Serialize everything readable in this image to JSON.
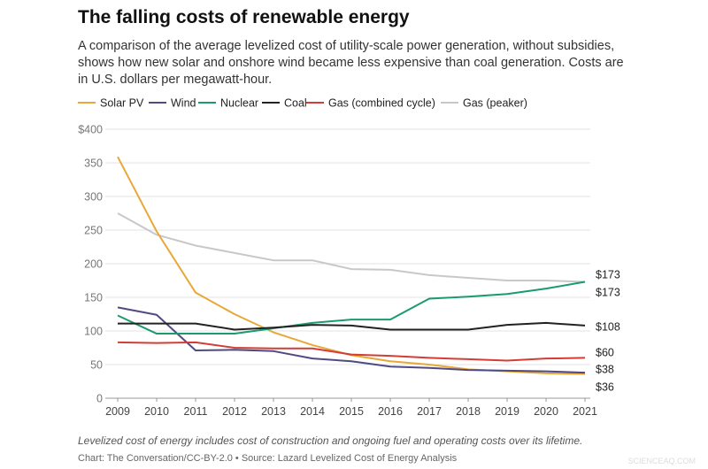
{
  "chart_data": {
    "type": "line",
    "title": "The falling costs of renewable energy",
    "subtitle": [
      "A comparison of the average levelized cost of utility-scale power generation, without subsidies,",
      "shows how new solar and onshore wind became less expensive than coal generation. Costs are",
      "in U.S. dollars per megawatt-hour."
    ],
    "categories": [
      "2009",
      "2010",
      "2011",
      "2012",
      "2013",
      "2014",
      "2015",
      "2016",
      "2017",
      "2018",
      "2019",
      "2020",
      "2021"
    ],
    "series": [
      {
        "name": "Solar PV",
        "color": "#e8a838",
        "values": [
          359,
          248,
          157,
          125,
          98,
          79,
          64,
          55,
          50,
          43,
          40,
          37,
          36
        ],
        "value_labels": [
          null,
          null,
          null,
          null,
          null,
          null,
          null,
          null,
          null,
          null,
          null,
          null,
          "$36"
        ]
      },
      {
        "name": "Wind",
        "color": "#4e4a82",
        "values": [
          135,
          124,
          71,
          72,
          70,
          59,
          55,
          47,
          45,
          42,
          41,
          40,
          38
        ],
        "value_labels": [
          null,
          null,
          null,
          null,
          null,
          null,
          null,
          null,
          null,
          null,
          null,
          null,
          "$38"
        ]
      },
      {
        "name": "Nuclear",
        "color": "#1a9b6c",
        "values": [
          123,
          96,
          96,
          96,
          104,
          112,
          117,
          117,
          148,
          151,
          155,
          163,
          173
        ],
        "value_labels": [
          null,
          null,
          null,
          null,
          null,
          null,
          null,
          null,
          null,
          null,
          null,
          null,
          "$173"
        ]
      },
      {
        "name": "Coal",
        "color": "#222222",
        "values": [
          111,
          111,
          111,
          102,
          105,
          109,
          108,
          102,
          102,
          102,
          109,
          112,
          108
        ],
        "value_labels": [
          null,
          null,
          null,
          null,
          null,
          null,
          null,
          null,
          null,
          null,
          null,
          null,
          "$108"
        ]
      },
      {
        "name": "Gas (combined cycle)",
        "color": "#d43d35",
        "values": [
          83,
          82,
          83,
          75,
          74,
          74,
          65,
          63,
          60,
          58,
          56,
          59,
          60
        ],
        "value_labels": [
          null,
          null,
          null,
          null,
          null,
          null,
          null,
          null,
          null,
          null,
          null,
          null,
          "$60"
        ]
      },
      {
        "name": "Gas (peaker)",
        "color": "#c8c8c8",
        "values": [
          275,
          243,
          227,
          216,
          205,
          205,
          192,
          191,
          183,
          179,
          175,
          175,
          173
        ],
        "value_labels": [
          null,
          null,
          null,
          null,
          null,
          null,
          null,
          null,
          null,
          null,
          null,
          null,
          "$173"
        ]
      }
    ],
    "ylim": [
      0,
      400
    ],
    "yticks": [
      0,
      50,
      100,
      150,
      200,
      250,
      300,
      350,
      {
        "value": 400,
        "label": "$400"
      }
    ],
    "grid": true,
    "legend": "top",
    "note": "Levelized cost of energy includes cost of construction and ongoing fuel and operating costs over its lifetime.",
    "source": "Chart: The Conversation/CC-BY-2.0 • Source: Lazard Levelized Cost of Energy Analysis",
    "watermark": "SCIENCEAQ.COM"
  }
}
